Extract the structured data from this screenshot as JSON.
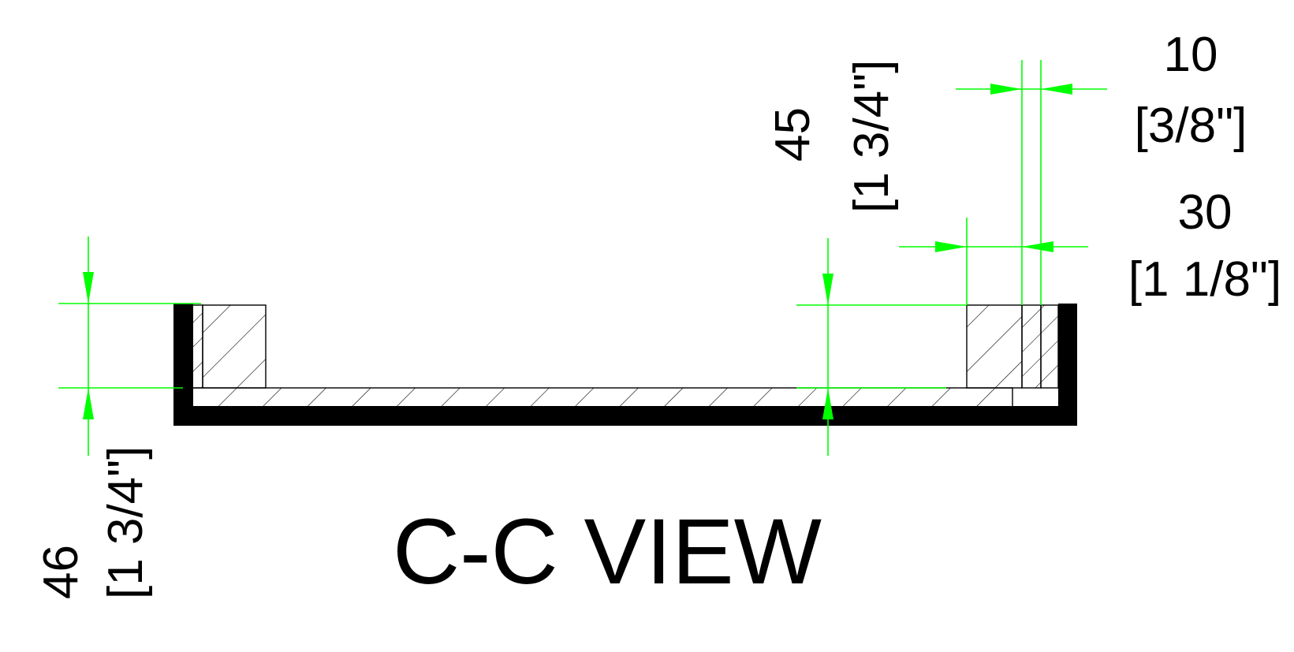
{
  "title": "C-C VIEW",
  "dimensions": {
    "left_height": {
      "value": "46",
      "imperial": "[1 3/4\"]"
    },
    "right_height": {
      "value": "45",
      "imperial": "[1 3/4\"]"
    },
    "slot_width": {
      "value": "10",
      "imperial": "[3/8\"]"
    },
    "block_width": {
      "value": "30",
      "imperial": "[1 1/8\"]"
    }
  },
  "colors": {
    "dimension": "#00ff00",
    "outline": "#000000",
    "background": "#ffffff"
  }
}
